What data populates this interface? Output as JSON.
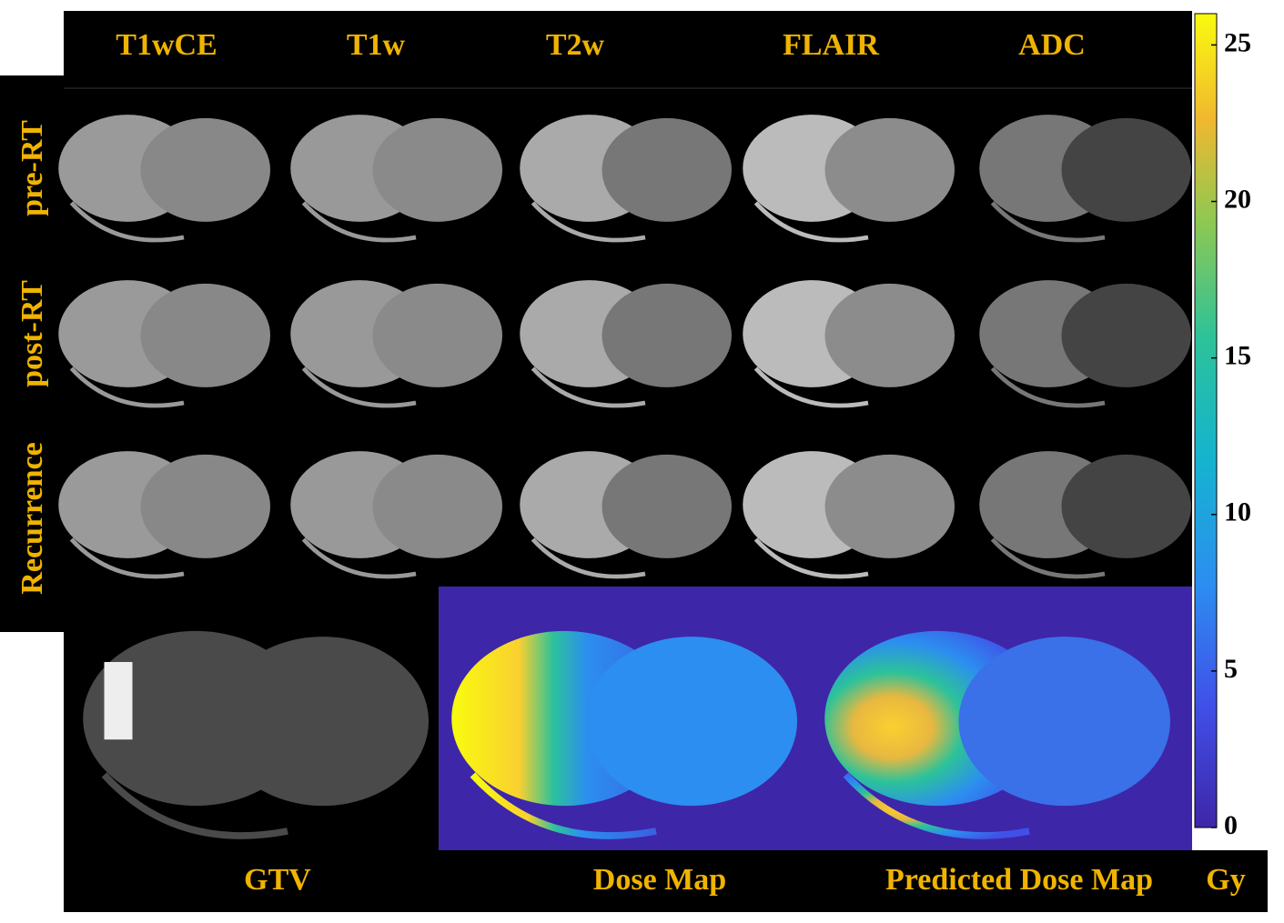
{
  "columns": [
    "T1wCE",
    "T1w",
    "T2w",
    "FLAIR",
    "ADC"
  ],
  "rows": [
    "pre-RT",
    "post-RT",
    "Recurrence"
  ],
  "panels": [
    "GTV",
    "Dose Map",
    "Predicted Dose Map"
  ],
  "colorbar": {
    "unit": "Gy",
    "lim": [
      0,
      26
    ],
    "ticks": [
      0,
      5,
      10,
      15,
      20,
      25
    ]
  }
}
